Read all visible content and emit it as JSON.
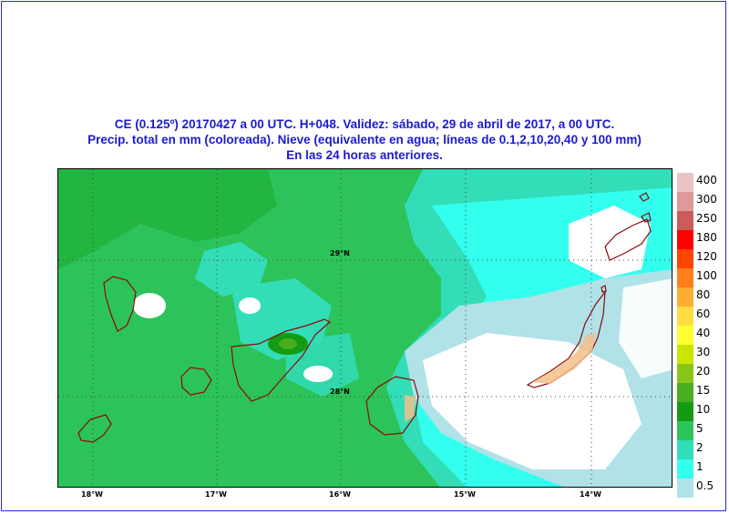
{
  "header": {
    "line1": "CE (0.125º) 20170427 a 00 UTC.  H+048. Validez: sábado, 29 de abril de 2017,  a  00 UTC.",
    "line2": "Precip. total en mm (coloreada). Nieve (equivalente en agua; líneas de 0.1,2,10,20,40 y 100 mm)",
    "line3": "En las 24 horas anteriores."
  },
  "map": {
    "lat_labels": [
      "29°N",
      "28°N"
    ],
    "lon_labels": [
      "18°W",
      "17°W",
      "16°W",
      "15°W",
      "14°W"
    ]
  },
  "legend": {
    "items": [
      {
        "label": "400",
        "color": "#e8c4c4"
      },
      {
        "label": "300",
        "color": "#de9a9a"
      },
      {
        "label": "250",
        "color": "#cc5c5c"
      },
      {
        "label": "180",
        "color": "#ff0000"
      },
      {
        "label": "120",
        "color": "#ff4500"
      },
      {
        "label": "100",
        "color": "#ff7f1a"
      },
      {
        "label": "80",
        "color": "#ffad33"
      },
      {
        "label": "60",
        "color": "#ffdd44"
      },
      {
        "label": "40",
        "color": "#ffff33"
      },
      {
        "label": "30",
        "color": "#c8e600"
      },
      {
        "label": "20",
        "color": "#88c71a"
      },
      {
        "label": "15",
        "color": "#4aae20"
      },
      {
        "label": "10",
        "color": "#149b14"
      },
      {
        "label": "5",
        "color": "#2cc35a"
      },
      {
        "label": "2",
        "color": "#33ddb8"
      },
      {
        "label": "1",
        "color": "#33ffee"
      },
      {
        "label": "0.5",
        "color": "#b0e2e8"
      }
    ]
  }
}
